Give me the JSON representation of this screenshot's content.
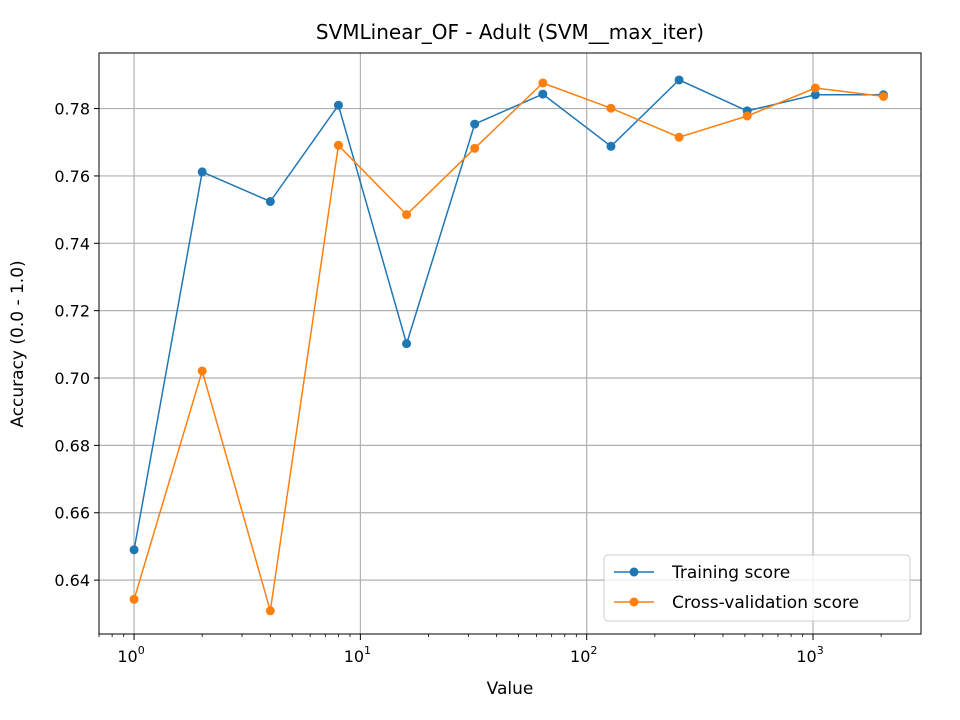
{
  "chart_data": {
    "type": "line",
    "title": "SVMLinear_OF - Adult (SVM__max_iter)",
    "xlabel": "Value",
    "ylabel": "Accuracy (0.0 - 1.0)",
    "xscale": "log",
    "xlim": [
      0.7,
      3000
    ],
    "ylim": [
      0.624,
      0.7965
    ],
    "x_major_ticks": [
      {
        "base": "10",
        "exp": "0",
        "value": 1
      },
      {
        "base": "10",
        "exp": "1",
        "value": 10
      },
      {
        "base": "10",
        "exp": "2",
        "value": 100
      },
      {
        "base": "10",
        "exp": "3",
        "value": 1000
      }
    ],
    "y_ticks": [
      {
        "label": "0.64",
        "value": 0.64
      },
      {
        "label": "0.66",
        "value": 0.66
      },
      {
        "label": "0.68",
        "value": 0.68
      },
      {
        "label": "0.70",
        "value": 0.7
      },
      {
        "label": "0.72",
        "value": 0.72
      },
      {
        "label": "0.74",
        "value": 0.74
      },
      {
        "label": "0.76",
        "value": 0.76
      },
      {
        "label": "0.78",
        "value": 0.78
      }
    ],
    "grid": true,
    "legend_position": "bottom-right",
    "x": [
      1,
      2,
      4,
      8,
      16,
      32,
      64,
      128,
      256,
      512,
      1024,
      2048
    ],
    "series": [
      {
        "name": "Training score",
        "color": "#1f77b4",
        "values": [
          0.649,
          0.7612,
          0.7524,
          0.781,
          0.7102,
          0.7754,
          0.7843,
          0.7688,
          0.7885,
          0.7793,
          0.7841,
          0.7841
        ]
      },
      {
        "name": "Cross-validation score",
        "color": "#ff7f0e",
        "values": [
          0.6343,
          0.7021,
          0.6309,
          0.7691,
          0.7485,
          0.7682,
          0.7876,
          0.7801,
          0.7715,
          0.7778,
          0.7861,
          0.7836
        ]
      }
    ]
  }
}
